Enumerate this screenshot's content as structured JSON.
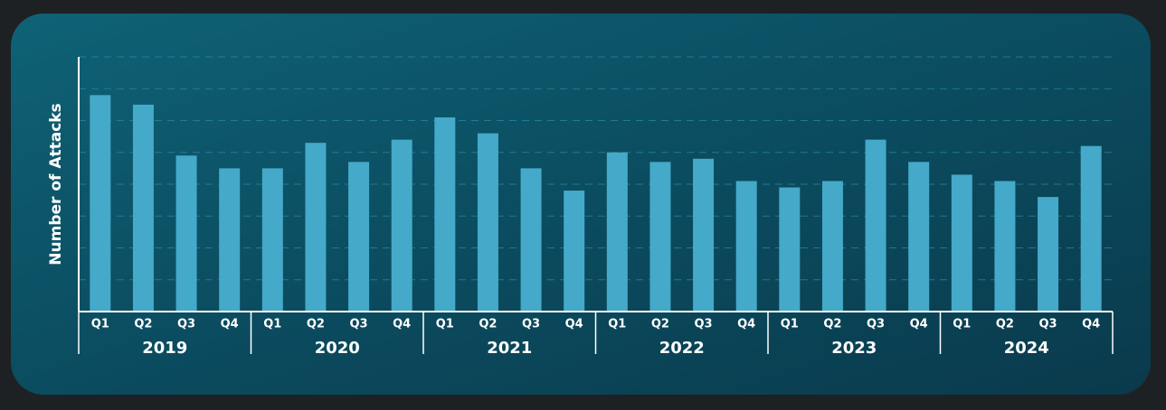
{
  "chart_data": {
    "type": "bar",
    "y_label": "Number of Attacks",
    "categories": [
      "Q1",
      "Q2",
      "Q3",
      "Q4",
      "Q1",
      "Q2",
      "Q3",
      "Q4",
      "Q1",
      "Q2",
      "Q3",
      "Q4",
      "Q1",
      "Q2",
      "Q3",
      "Q4",
      "Q1",
      "Q2",
      "Q3",
      "Q4",
      "Q1",
      "Q2",
      "Q3",
      "Q4"
    ],
    "groups": [
      "2019",
      "2020",
      "2021",
      "2022",
      "2023",
      "2024"
    ],
    "values": [
      6.8,
      6.5,
      4.9,
      4.5,
      4.5,
      5.3,
      4.7,
      5.4,
      6.1,
      5.6,
      4.5,
      3.8,
      5.0,
      4.7,
      4.8,
      4.1,
      3.9,
      4.1,
      5.4,
      4.7,
      4.3,
      4.1,
      3.6,
      5.2
    ],
    "color": "#45a9c9",
    "ylim": [
      0,
      8
    ],
    "yticks": [
      1,
      2,
      3,
      4,
      5,
      6,
      7,
      8
    ],
    "grid": true
  }
}
